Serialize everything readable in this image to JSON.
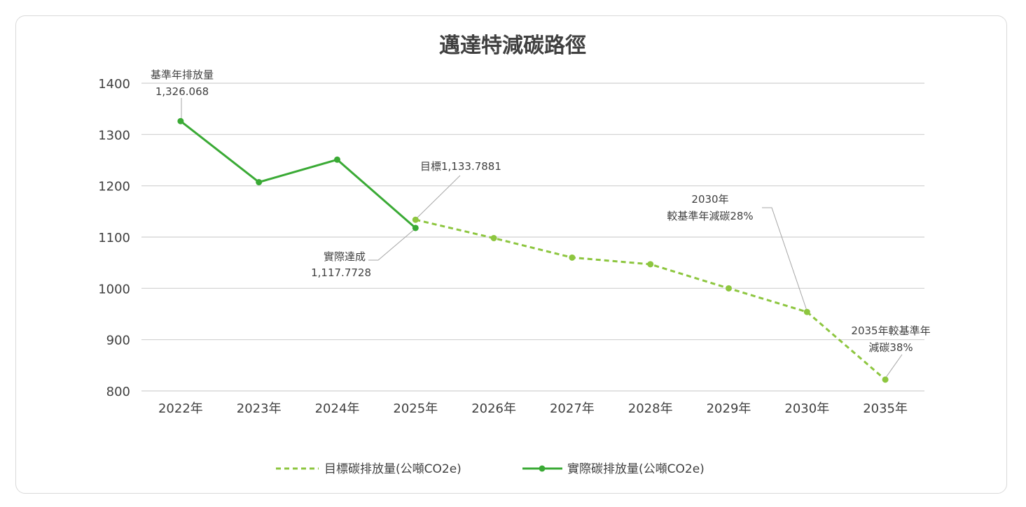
{
  "chart_data": {
    "type": "line",
    "title": "邁達特減碳路徑",
    "categories": [
      "2022年",
      "2023年",
      "2024年",
      "2025年",
      "2026年",
      "2027年",
      "2028年",
      "2029年",
      "2030年",
      "2035年"
    ],
    "y_ticks": [
      "1400",
      "1300",
      "1200",
      "1100",
      "1000",
      "900",
      "800"
    ],
    "ylim": [
      800,
      1400
    ],
    "grid": true,
    "legend_position": "bottom",
    "series": [
      {
        "name": "目標碳排放量(公噸CO2e)",
        "style": "dashed",
        "color": "#8dc63f",
        "values": [
          null,
          null,
          null,
          1133.7881,
          1098,
          1060,
          1047,
          1000,
          954,
          822
        ]
      },
      {
        "name": "實際碳排放量(公噸CO2e)",
        "style": "solid",
        "color": "#3aaa35",
        "values": [
          1326.068,
          1207,
          1251,
          1117.7728,
          null,
          null,
          null,
          null,
          null,
          null
        ]
      }
    ],
    "annotations": {
      "base_line1": "基準年排放量",
      "base_line2": "1,326.068",
      "target2025": "目標1,133.7881",
      "actual2025_line1": "實際達成",
      "actual2025_line2": "1,117.7728",
      "y2030_line1": "2030年",
      "y2030_line2": "較基準年減碳28%",
      "y2035_line1": "2035年較基準年",
      "y2035_line2": "減碳38%"
    }
  }
}
